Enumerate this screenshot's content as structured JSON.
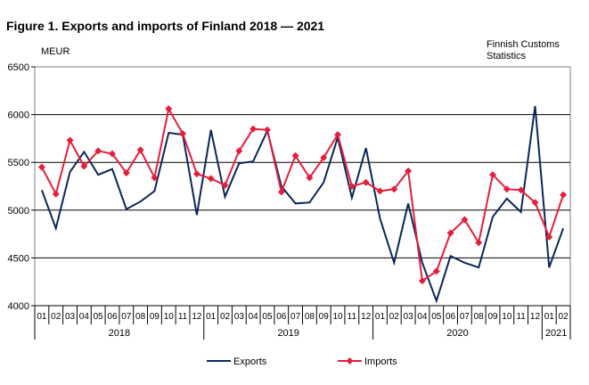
{
  "chart_data": {
    "type": "line",
    "title": "Figure 1. Exports and imports of Finland 2018 — 2021",
    "ylabel": "MEUR",
    "source": [
      "Finnish Customs",
      "Statistics"
    ],
    "ylim": [
      4000,
      6500
    ],
    "yticks": [
      "4000",
      "4500",
      "5000",
      "5500",
      "6000",
      "6500"
    ],
    "months": [
      "01",
      "02",
      "03",
      "04",
      "05",
      "06",
      "07",
      "08",
      "09",
      "10",
      "11",
      "12",
      "01",
      "02",
      "03",
      "04",
      "05",
      "06",
      "07",
      "08",
      "09",
      "10",
      "11",
      "12",
      "01",
      "02",
      "03",
      "04",
      "05",
      "06",
      "07",
      "08",
      "09",
      "10",
      "11",
      "12",
      "01",
      "02"
    ],
    "years": [
      {
        "label": "2018",
        "start": 0,
        "count": 12
      },
      {
        "label": "2019",
        "start": 12,
        "count": 12
      },
      {
        "label": "2020",
        "start": 24,
        "count": 12
      },
      {
        "label": "2021",
        "start": 36,
        "count": 2
      }
    ],
    "series": [
      {
        "name": "Exports",
        "color": "#0c2657",
        "marker": "none",
        "values": [
          5210,
          4810,
          5400,
          5610,
          5370,
          5430,
          5010,
          5090,
          5200,
          5810,
          5790,
          4950,
          5840,
          5140,
          5490,
          5510,
          5830,
          5250,
          5070,
          5080,
          5290,
          5760,
          5130,
          5650,
          4910,
          4450,
          5070,
          4450,
          4050,
          4520,
          4450,
          4400,
          4930,
          5120,
          4980,
          6090,
          4400,
          4810
        ]
      },
      {
        "name": "Imports",
        "color": "#e41e3c",
        "marker": "diamond",
        "values": [
          5450,
          5170,
          5730,
          5460,
          5620,
          5590,
          5390,
          5630,
          5340,
          6060,
          5800,
          5380,
          5330,
          5260,
          5620,
          5850,
          5840,
          5190,
          5570,
          5340,
          5550,
          5790,
          5250,
          5290,
          5200,
          5220,
          5410,
          4260,
          4360,
          4760,
          4900,
          4660,
          5370,
          5220,
          5210,
          5080,
          4720,
          5160
        ]
      }
    ]
  }
}
